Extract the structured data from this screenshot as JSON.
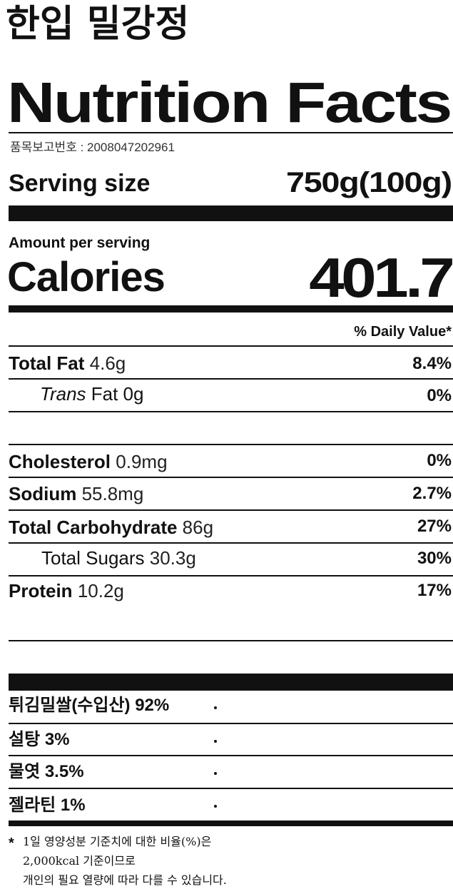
{
  "header": {
    "title": "한입 밀강정",
    "heading": "Nutrition Facts",
    "report_number": "품목보고번호 : 2008047202961"
  },
  "serving": {
    "label": "Serving size",
    "value": "750g(100g)"
  },
  "calories": {
    "amount_label": "Amount per serving",
    "label": "Calories",
    "value": "401.7"
  },
  "daily_value_header": "% Daily Value*",
  "nutrients": [
    {
      "name": "Total Fat",
      "amount": "4.6g",
      "dv": "8.4%"
    },
    {
      "name_italic": "Trans",
      "name": "Fat 0g",
      "dv": "0%"
    },
    {
      "name": "Cholesterol",
      "amount": "0.9mg",
      "dv": "0%"
    },
    {
      "name": "Sodium",
      "amount": "55.8mg",
      "dv": "2.7%"
    },
    {
      "name": "Total Carbohydrate",
      "amount": "86g",
      "dv": "27%"
    },
    {
      "name": "Total Sugars",
      "amount": "30.3g",
      "dv": "30%"
    },
    {
      "name": "Protein",
      "amount": "10.2g",
      "dv": "17%"
    }
  ],
  "ingredients": [
    "튀김밀쌀(수입산) 92%",
    "설탕 3%",
    "물엿 3.5%",
    "젤라틴 1%"
  ],
  "footnote": {
    "mark": "*",
    "lines": [
      "1일 영양성분 기준치에 대한 비율(%)은",
      "2,000kcal 기준이므로",
      "개인의 필요 열량에 따라 다를 수 있습니다."
    ]
  }
}
